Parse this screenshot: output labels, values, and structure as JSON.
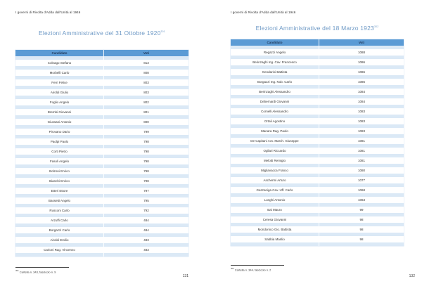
{
  "colors": {
    "table_header_bg": "#5b9bd5",
    "table_band_bg": "#dbe9f6",
    "title_color": "#6f9ac6",
    "text_color": "#333333"
  },
  "left_page": {
    "running_header": "I governi di Rivolta d'Adda dall'Unità al 1946",
    "title": "Elezioni Amministrative del 31 Ottobre 1920",
    "title_note": "301",
    "table": {
      "headers": [
        "Candidato",
        "Voti"
      ],
      "rows": [
        [
          "Colnago Stefano",
          "813"
        ],
        [
          "Morbelli Carlo",
          "808"
        ],
        [
          "Ferri Felice",
          "803"
        ],
        [
          "Airoldi Giulio",
          "803"
        ],
        [
          "Foglio Angelo",
          "802"
        ],
        [
          "Brembi Giovanni",
          "801"
        ],
        [
          "Giussani Antonio",
          "800"
        ],
        [
          "Pirovano Dario",
          "799"
        ],
        [
          "Paolpi Paolo",
          "798"
        ],
        [
          "Corti Pietro",
          "798"
        ],
        [
          "Fasoli Angelo",
          "798"
        ],
        [
          "Bolzoni Enrico",
          "798"
        ],
        [
          "Bianchi Enrico",
          "798"
        ],
        [
          "Etteri Ettore",
          "797"
        ],
        [
          "Bassetti Angelo",
          "795"
        ],
        [
          "Rusconi Carlo",
          "792"
        ],
        [
          "Arzuffi Carlo",
          "484"
        ],
        [
          "Borgazzi Carlo",
          "484"
        ],
        [
          "Airoldi Emilio",
          "483"
        ],
        [
          "Carioni Rag. Vincenzo",
          "483"
        ]
      ]
    },
    "footnote_marker": "301",
    "footnote_text": "Cartella n. 343, fascicolo n. 9",
    "page_number": "131"
  },
  "right_page": {
    "running_header": "I governi di Rivolta d'Adda dall'Unità al 1946",
    "title": "Elezioni Amministrative del 18 Marzo 1923",
    "title_note": "302",
    "table": {
      "headers": [
        "Candidato",
        "Voti"
      ],
      "rows": [
        [
          "Regazzi Angelo",
          "1088"
        ],
        [
          "Berinzaghi Ing. Cav. Francesco",
          "1086"
        ],
        [
          "Gendarini Battista",
          "1086"
        ],
        [
          "Borgazzi Ing. Nob. Carlo",
          "1086"
        ],
        [
          "Berinzaghi Alessandro",
          "1084"
        ],
        [
          "Debernardi Giovanni",
          "1084"
        ],
        [
          "Cornelli Alessandro",
          "1083"
        ],
        [
          "Ortali Agostino",
          "1083"
        ],
        [
          "Manara Rag. Paolo",
          "1083"
        ],
        [
          "De Capitani Avv. March. Giuseppe",
          "1081"
        ],
        [
          "Ogliari Riccardo",
          "1081"
        ],
        [
          "Melotti Remigio",
          "1081"
        ],
        [
          "Migliavacca Franco",
          "1080"
        ],
        [
          "Aschermi Arturo",
          "1077"
        ],
        [
          "Gazzaniga Cav. Uff. Carlo",
          "1068"
        ],
        [
          "Lunghi Antonio",
          "1063"
        ],
        [
          "Bai Mauro",
          "99"
        ],
        [
          "Ceresa Giovanni",
          "98"
        ],
        [
          "Mondonico Gio. Battista",
          "98"
        ],
        [
          "Sabbia Manlio",
          "98"
        ]
      ]
    },
    "footnote_marker": "302",
    "footnote_text": "Cartella n. 344, fascicolo n. 2",
    "page_number": "132"
  }
}
